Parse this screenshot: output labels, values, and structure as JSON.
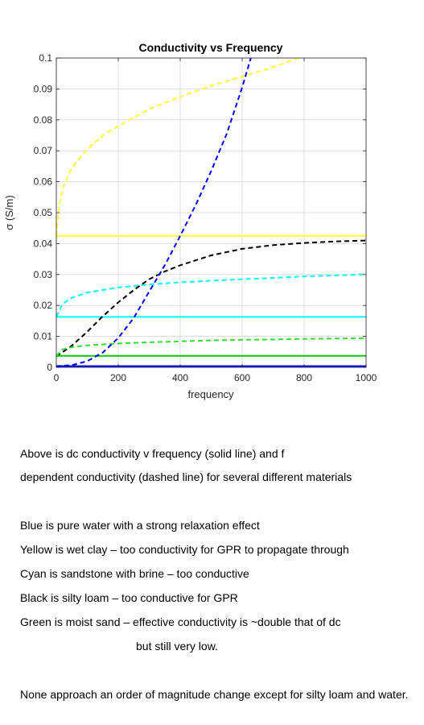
{
  "chart_data": {
    "type": "line",
    "title": "Conductivity vs Frequency",
    "xlabel": "frequency",
    "ylabel": "σ (S/m)",
    "xlim": [
      0,
      1000
    ],
    "ylim": [
      0,
      0.1
    ],
    "xticks": [
      0,
      200,
      400,
      600,
      800,
      1000
    ],
    "xtick_labels": [
      "0",
      "200",
      "400",
      "600",
      "800",
      "1000"
    ],
    "yticks": [
      0,
      0.01,
      0.02,
      0.03,
      0.04,
      0.05,
      0.06,
      0.07,
      0.08,
      0.09,
      0.1
    ],
    "ytick_labels": [
      "0",
      "0.01",
      "0.02",
      "0.03",
      "0.04",
      "0.05",
      "0.06",
      "0.07",
      "0.08",
      "0.09",
      "0.1"
    ],
    "grid": true,
    "series": [
      {
        "color": "#ffff33",
        "style": "solid",
        "x": [
          0,
          1000
        ],
        "y": [
          0.0425,
          0.0425
        ]
      },
      {
        "color": "#ffff33",
        "style": "dashed",
        "x": [
          0,
          10,
          25,
          50,
          100,
          150,
          200,
          300,
          400,
          500,
          600,
          700,
          780
        ],
        "y": [
          0.0425,
          0.053,
          0.059,
          0.0645,
          0.0705,
          0.075,
          0.078,
          0.0835,
          0.0875,
          0.091,
          0.094,
          0.097,
          0.1
        ]
      },
      {
        "color": "#00ffff",
        "style": "solid",
        "x": [
          0,
          1000
        ],
        "y": [
          0.0163,
          0.0163
        ]
      },
      {
        "color": "#00ffff",
        "style": "dashed",
        "x": [
          0,
          20,
          50,
          100,
          200,
          300,
          400,
          500,
          600,
          700,
          800,
          900,
          1000
        ],
        "y": [
          0.0163,
          0.0205,
          0.0225,
          0.0242,
          0.0258,
          0.0268,
          0.0275,
          0.028,
          0.0285,
          0.0289,
          0.0294,
          0.0297,
          0.0301
        ]
      },
      {
        "color": "#000000",
        "style": "dashed",
        "x": [
          0,
          50,
          100,
          150,
          200,
          250,
          300,
          350,
          400,
          500,
          600,
          700,
          800,
          900,
          1000
        ],
        "y": [
          0.0035,
          0.007,
          0.0115,
          0.0165,
          0.021,
          0.025,
          0.0285,
          0.031,
          0.033,
          0.0362,
          0.0383,
          0.0395,
          0.0402,
          0.0407,
          0.041
        ]
      },
      {
        "color": "#00cc00",
        "style": "solid",
        "x": [
          0,
          1000
        ],
        "y": [
          0.0037,
          0.0037
        ]
      },
      {
        "color": "#33dd33",
        "style": "dashed",
        "x": [
          0,
          20,
          50,
          100,
          200,
          300,
          400,
          500,
          600,
          700,
          800,
          900,
          1000
        ],
        "y": [
          0.0037,
          0.0058,
          0.0065,
          0.0071,
          0.0077,
          0.0081,
          0.0084,
          0.0087,
          0.0089,
          0.009,
          0.0092,
          0.0093,
          0.0094
        ]
      },
      {
        "color": "#0000ff",
        "style": "solid",
        "x": [
          0,
          1000
        ],
        "y": [
          0.0004,
          0.0004
        ]
      },
      {
        "color": "#0000ff",
        "style": "dashed",
        "x": [
          0,
          50,
          100,
          150,
          200,
          250,
          300,
          350,
          400,
          450,
          500,
          550,
          600,
          628
        ],
        "y": [
          0.0004,
          0.0007,
          0.002,
          0.0048,
          0.0095,
          0.016,
          0.0245,
          0.033,
          0.0425,
          0.0525,
          0.0635,
          0.0755,
          0.0905,
          0.1
        ]
      }
    ]
  },
  "notes": {
    "line1": "Above is dc conductivity v frequency (solid line) and f",
    "line2": "dependent conductivity (dashed line) for several different materials",
    "blue": "Blue is pure water with a strong relaxation effect",
    "yellow": "Yellow is wet clay – too conductivity for GPR to propagate through",
    "cyan": "Cyan is sandstone with brine – too conductive",
    "black": "Black is silty loam – too conductive for GPR",
    "green": "Green is moist sand – effective conductivity is ~double that of dc",
    "green_cont": "but still very low.",
    "conclusion": "None approach an order of magnitude change except for silty loam and water."
  }
}
